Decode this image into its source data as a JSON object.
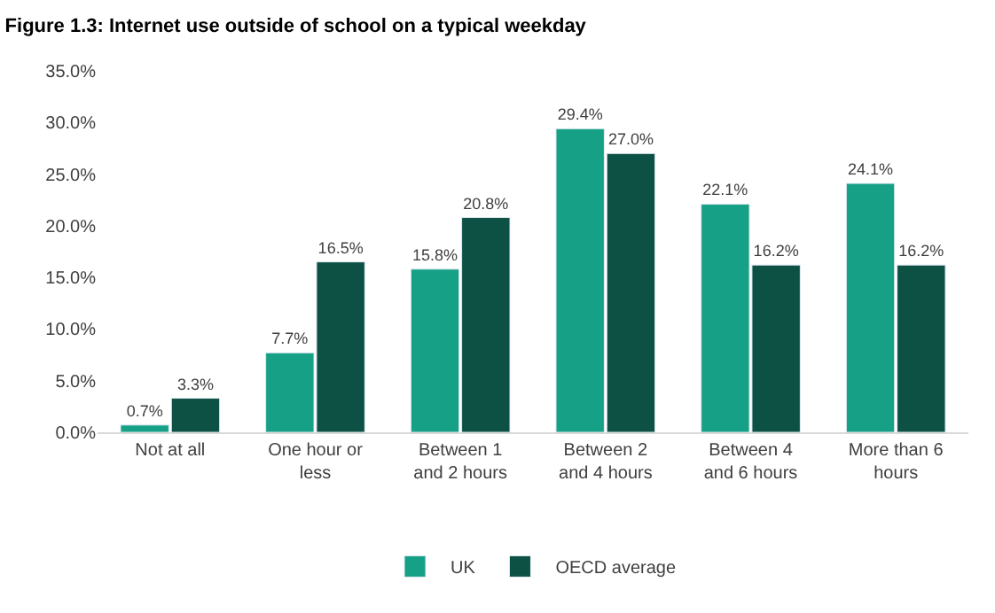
{
  "chart_data": {
    "type": "bar",
    "title": "Figure 1.3: Internet use outside of school on a typical weekday",
    "categories": [
      "Not at all",
      "One hour or less",
      "Between 1 and 2 hours",
      "Between 2 and 4 hours",
      "Between 4 and 6 hours",
      "More than 6 hours"
    ],
    "series": [
      {
        "name": "UK",
        "color": "#16a086",
        "values": [
          0.7,
          7.7,
          15.8,
          29.4,
          22.1,
          24.1
        ],
        "value_labels": [
          "0.7%",
          "7.7%",
          "15.8%",
          "29.4%",
          "22.1%",
          "24.1%"
        ]
      },
      {
        "name": "OECD average",
        "color": "#0c5144",
        "values": [
          3.3,
          16.5,
          20.8,
          27.0,
          16.2,
          16.2
        ],
        "value_labels": [
          "3.3%",
          "16.5%",
          "20.8%",
          "27.0%",
          "16.2%",
          "16.2%"
        ]
      }
    ],
    "ylim": [
      0,
      35
    ],
    "yticks": [
      {
        "value": 0,
        "label": "0.0%"
      },
      {
        "value": 5,
        "label": "5.0%"
      },
      {
        "value": 10,
        "label": "10.0%"
      },
      {
        "value": 15,
        "label": "15.0%"
      },
      {
        "value": 20,
        "label": "20.0%"
      },
      {
        "value": 25,
        "label": "25.0%"
      },
      {
        "value": 30,
        "label": "30.0%"
      },
      {
        "value": 35,
        "label": "35.0%"
      }
    ],
    "grid": false,
    "legend": "bottom"
  }
}
